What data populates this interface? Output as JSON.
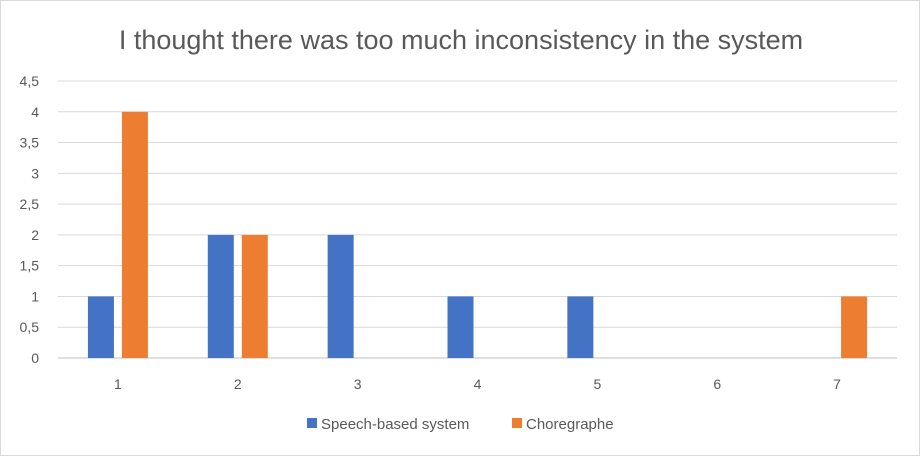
{
  "chart_data": {
    "type": "bar",
    "title": "I thought there was too much inconsistency in the system",
    "categories": [
      "1",
      "2",
      "3",
      "4",
      "5",
      "6",
      "7"
    ],
    "series": [
      {
        "name": "Speech-based system",
        "color": "#4472c4",
        "values": [
          1,
          2,
          2,
          1,
          1,
          0,
          0
        ]
      },
      {
        "name": "Choregraphe",
        "color": "#ed7d31",
        "values": [
          4,
          2,
          0,
          0,
          0,
          0,
          1
        ]
      }
    ],
    "y_ticks": [
      "0",
      "0,5",
      "1",
      "1,5",
      "2",
      "2,5",
      "3",
      "3,5",
      "4",
      "4,5"
    ],
    "ylim": [
      0,
      4.5
    ],
    "grid": true,
    "legend_position": "bottom",
    "gridline_color": "#d9d9d9",
    "axis_line_color": "#bfbfbf",
    "text_color": "#595959"
  }
}
